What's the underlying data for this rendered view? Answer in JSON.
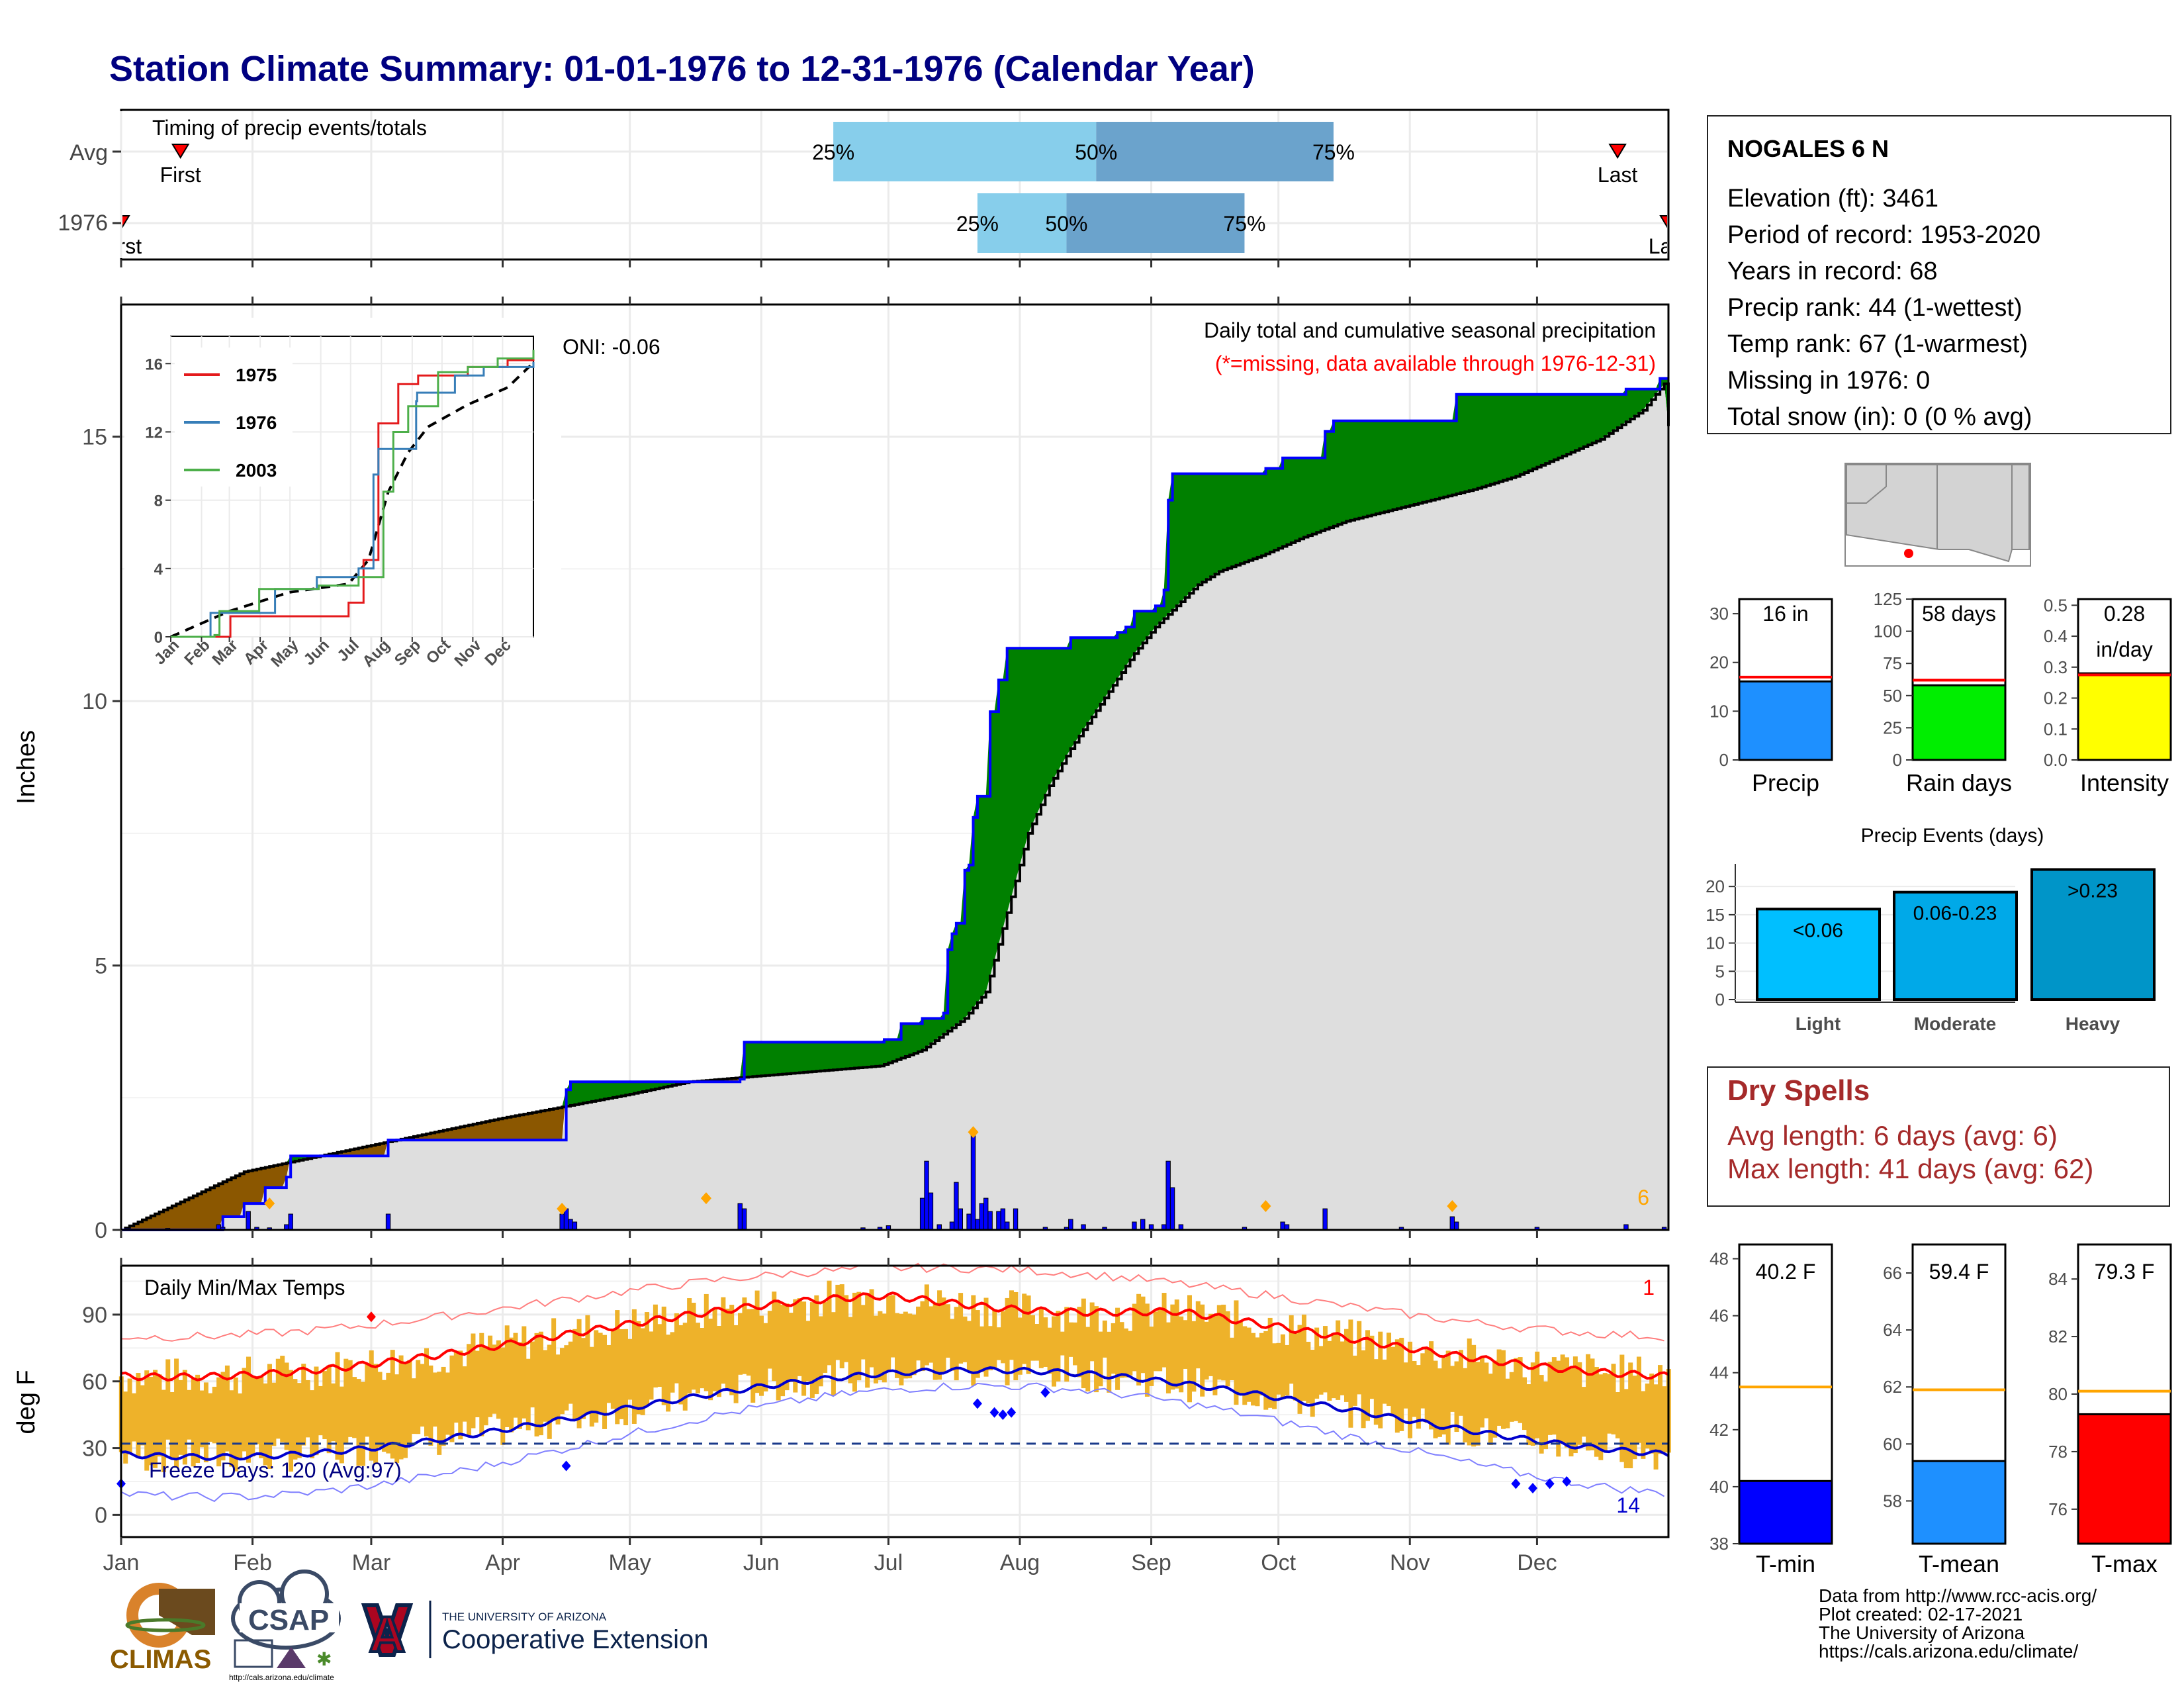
{
  "title": "Station Climate Summary: 01-01-1976 to 12-31-1976 (Calendar Year)",
  "colors": {
    "title": "#000080",
    "below_avg": "#8B5700",
    "above_avg": "#008000",
    "cumulative_fill": "#DEDEDE",
    "daily_bar": "#0000FF",
    "temp_bar": "#EEB22A",
    "t_max_line": "#FF0000",
    "t_min_line": "#0000CD",
    "precip_box": "#1E90FF",
    "rain_days_box": "#00EE00",
    "intensity_box": "#FFFF00",
    "event_light": "#00BFFF",
    "event_moderate": "#00A9E8",
    "event_heavy": "#0095C8",
    "dry_spell_text": "#A52A2A",
    "red_ref": "#FF0000",
    "orange_ref": "#FFA500"
  },
  "timing": {
    "title": "Timing of precip events/totals",
    "rows": [
      {
        "label": "Avg",
        "first_label": "First",
        "last_label": "Last",
        "first_day": 15,
        "q25_day": 169,
        "q50_day": 231,
        "q75_day": 287,
        "last_day": 354
      },
      {
        "label": "1976",
        "first_label": "First",
        "last_label": "Last",
        "first_day": 1,
        "q25_day": 203,
        "q50_day": 224,
        "q75_day": 266,
        "last_day": 366
      }
    ],
    "pct_labels": [
      "25%",
      "50%",
      "75%"
    ]
  },
  "precip_panel": {
    "ylabel": "Inches",
    "title_line1": "Daily total and cumulative seasonal precipitation",
    "title_line2": "(*=missing, data available through 1976-12-31)",
    "oni": "ONI: -0.06",
    "extreme_count": "6",
    "y_ticks": [
      "0",
      "5",
      "10",
      "15"
    ],
    "ylim": [
      0,
      17.5
    ],
    "cum_avg_pts": [
      [
        1,
        0
      ],
      [
        30,
        1.1
      ],
      [
        60,
        1.6
      ],
      [
        90,
        2.1
      ],
      [
        120,
        2.55
      ],
      [
        135,
        2.8
      ],
      [
        150,
        2.9
      ],
      [
        180,
        3.1
      ],
      [
        190,
        3.4
      ],
      [
        195,
        3.7
      ],
      [
        200,
        4.0
      ],
      [
        205,
        4.5
      ],
      [
        210,
        6.0
      ],
      [
        215,
        7.5
      ],
      [
        220,
        8.4
      ],
      [
        225,
        9.1
      ],
      [
        230,
        9.7
      ],
      [
        235,
        10.3
      ],
      [
        240,
        10.9
      ],
      [
        245,
        11.4
      ],
      [
        250,
        11.8
      ],
      [
        255,
        12.2
      ],
      [
        260,
        12.45
      ],
      [
        270,
        12.75
      ],
      [
        280,
        13.1
      ],
      [
        290,
        13.4
      ],
      [
        300,
        13.6
      ],
      [
        310,
        13.8
      ],
      [
        320,
        14.0
      ],
      [
        330,
        14.25
      ],
      [
        340,
        14.6
      ],
      [
        350,
        14.95
      ],
      [
        360,
        15.5
      ],
      [
        365,
        16.0
      ],
      [
        366,
        15.2
      ]
    ],
    "cum_1976_pts": [
      [
        1,
        0
      ],
      [
        24,
        0
      ],
      [
        25,
        0.25
      ],
      [
        30,
        0.5
      ],
      [
        35,
        0.8
      ],
      [
        40,
        1.0
      ],
      [
        41,
        1.4
      ],
      [
        63,
        1.4
      ],
      [
        64,
        1.7
      ],
      [
        105,
        1.7
      ],
      [
        106,
        2.65
      ],
      [
        107,
        2.8
      ],
      [
        147,
        2.85
      ],
      [
        148,
        3.55
      ],
      [
        177,
        3.55
      ],
      [
        181,
        3.6
      ],
      [
        185,
        3.9
      ],
      [
        190,
        4.0
      ],
      [
        195,
        4.1
      ],
      [
        196,
        5.3
      ],
      [
        197,
        5.6
      ],
      [
        198,
        5.8
      ],
      [
        200,
        6.8
      ],
      [
        201,
        6.9
      ],
      [
        202,
        7.8
      ],
      [
        203,
        8.2
      ],
      [
        206,
        9.8
      ],
      [
        208,
        10.4
      ],
      [
        210,
        11.0
      ],
      [
        224,
        11.0
      ],
      [
        225,
        11.2
      ],
      [
        235,
        11.2
      ],
      [
        236,
        11.3
      ],
      [
        238,
        11.4
      ],
      [
        240,
        11.7
      ],
      [
        245,
        11.8
      ],
      [
        247,
        12.1
      ],
      [
        248,
        13.8
      ],
      [
        249,
        14.3
      ],
      [
        270,
        14.3
      ],
      [
        271,
        14.4
      ],
      [
        275,
        14.6
      ],
      [
        285,
        15.1
      ],
      [
        287,
        15.3
      ],
      [
        315,
        15.3
      ],
      [
        316,
        15.8
      ],
      [
        355,
        15.8
      ],
      [
        356,
        15.9
      ],
      [
        363,
        15.9
      ],
      [
        364,
        16.1
      ],
      [
        366,
        16.1
      ]
    ],
    "daily_bars": [
      [
        12,
        0.03
      ],
      [
        24,
        0.1
      ],
      [
        25,
        0.05
      ],
      [
        31,
        0.35
      ],
      [
        33,
        0.05
      ],
      [
        36,
        0.04
      ],
      [
        40,
        0.1
      ],
      [
        41,
        0.3
      ],
      [
        64,
        0.3
      ],
      [
        105,
        0.3
      ],
      [
        106,
        0.4
      ],
      [
        107,
        0.2
      ],
      [
        108,
        0.15
      ],
      [
        147,
        0.5
      ],
      [
        148,
        0.4
      ],
      [
        176,
        0.04
      ],
      [
        180,
        0.05
      ],
      [
        182,
        0.08
      ],
      [
        190,
        0.6
      ],
      [
        191,
        1.3
      ],
      [
        192,
        0.7
      ],
      [
        194,
        0.1
      ],
      [
        197,
        0.15
      ],
      [
        198,
        0.9
      ],
      [
        199,
        0.4
      ],
      [
        201,
        0.3
      ],
      [
        202,
        1.9
      ],
      [
        203,
        0.2
      ],
      [
        204,
        0.5
      ],
      [
        205,
        0.6
      ],
      [
        206,
        0.35
      ],
      [
        208,
        0.35
      ],
      [
        209,
        0.4
      ],
      [
        210,
        0.15
      ],
      [
        212,
        0.4
      ],
      [
        219,
        0.05
      ],
      [
        224,
        0.05
      ],
      [
        225,
        0.2
      ],
      [
        228,
        0.1
      ],
      [
        233,
        0.05
      ],
      [
        240,
        0.15
      ],
      [
        242,
        0.2
      ],
      [
        244,
        0.1
      ],
      [
        247,
        0.1
      ],
      [
        248,
        1.3
      ],
      [
        249,
        0.8
      ],
      [
        251,
        0.1
      ],
      [
        266,
        0.05
      ],
      [
        275,
        0.15
      ],
      [
        276,
        0.1
      ],
      [
        285,
        0.4
      ],
      [
        303,
        0.05
      ],
      [
        315,
        0.25
      ],
      [
        316,
        0.15
      ],
      [
        335,
        0.05
      ],
      [
        356,
        0.1
      ],
      [
        365,
        0.05
      ]
    ],
    "extreme_markers": [
      [
        36,
        0.5
      ],
      [
        105,
        0.4
      ],
      [
        139,
        0.6
      ],
      [
        202,
        1.85
      ],
      [
        271,
        0.45
      ],
      [
        315,
        0.45
      ]
    ]
  },
  "inset": {
    "y_ticks": [
      "0",
      "4",
      "8",
      "12",
      "16"
    ],
    "x_ticks": [
      "Jan",
      "Feb",
      "Mar",
      "Apr",
      "May",
      "Jun",
      "Jul",
      "Aug",
      "Sep",
      "Oct",
      "Nov",
      "Dec"
    ],
    "legend": [
      {
        "name": "1975",
        "color": "#E41A1C"
      },
      {
        "name": "1976",
        "color": "#377EB8"
      },
      {
        "name": "2003",
        "color": "#4DAF4A"
      }
    ],
    "avg_pts": [
      [
        1,
        0
      ],
      [
        60,
        1.5
      ],
      [
        120,
        2.6
      ],
      [
        180,
        3.1
      ],
      [
        200,
        4.5
      ],
      [
        220,
        8.5
      ],
      [
        240,
        10.8
      ],
      [
        260,
        12.3
      ],
      [
        300,
        13.6
      ],
      [
        340,
        14.6
      ],
      [
        365,
        16.0
      ]
    ],
    "series": [
      {
        "name": "1975",
        "pts": [
          [
            1,
            0
          ],
          [
            60,
            0
          ],
          [
            61,
            1.2
          ],
          [
            150,
            1.2
          ],
          [
            180,
            2.0
          ],
          [
            195,
            4.5
          ],
          [
            210,
            12.5
          ],
          [
            230,
            14.8
          ],
          [
            250,
            15.3
          ],
          [
            300,
            15.8
          ],
          [
            340,
            16.2
          ],
          [
            366,
            16.7
          ]
        ]
      },
      {
        "name": "1976",
        "pts": [
          [
            1,
            0
          ],
          [
            25,
            0
          ],
          [
            41,
            1.4
          ],
          [
            106,
            2.8
          ],
          [
            148,
            3.5
          ],
          [
            190,
            4.0
          ],
          [
            205,
            9.5
          ],
          [
            210,
            11.0
          ],
          [
            248,
            13.8
          ],
          [
            249,
            14.3
          ],
          [
            287,
            15.3
          ],
          [
            316,
            15.8
          ],
          [
            366,
            16.1
          ]
        ]
      },
      {
        "name": "2003",
        "pts": [
          [
            1,
            0
          ],
          [
            45,
            0.1
          ],
          [
            50,
            1.5
          ],
          [
            90,
            2.8
          ],
          [
            150,
            3.0
          ],
          [
            190,
            3.5
          ],
          [
            215,
            8.5
          ],
          [
            225,
            12.0
          ],
          [
            240,
            13.5
          ],
          [
            270,
            15.5
          ],
          [
            300,
            15.8
          ],
          [
            330,
            16.3
          ],
          [
            366,
            16.8
          ]
        ]
      }
    ]
  },
  "temp_panel": {
    "ylabel": "deg F",
    "title": "Daily Min/Max Temps",
    "freeze": "Freeze Days: 120 (Avg:97)",
    "max_count": "1",
    "min_count": "14",
    "y_ticks": [
      "0",
      "30",
      "60",
      "90"
    ],
    "ylim": [
      -10,
      112
    ],
    "freeze_line": 32
  },
  "months": [
    "Jan",
    "Feb",
    "Mar",
    "Apr",
    "May",
    "Jun",
    "Jul",
    "Aug",
    "Sep",
    "Oct",
    "Nov",
    "Dec"
  ],
  "station": {
    "name": "NOGALES 6 N",
    "lines": [
      "Elevation (ft): 3461",
      "Period of record: 1953-2020",
      "Years in record: 68",
      "Precip rank: 44 (1-wettest)",
      "Temp rank: 67 (1-warmest)",
      "Missing in 1976: 0",
      "Total snow (in): 0 (0 % avg)"
    ]
  },
  "summary_boxes": [
    {
      "label": "Precip",
      "value_text": "16 in",
      "value": 16.1,
      "avg": 17.0,
      "ymax": 33,
      "ticks": [
        "0",
        "10",
        "20",
        "30"
      ],
      "tick_vals": [
        0,
        10,
        20,
        30
      ]
    },
    {
      "label": "Rain days",
      "value_text": "58 days",
      "value": 58,
      "avg": 62,
      "ymax": 125,
      "ticks": [
        "0",
        "25",
        "50",
        "75",
        "100",
        "125"
      ],
      "tick_vals": [
        0,
        25,
        50,
        75,
        100,
        125
      ]
    },
    {
      "label": "Intensity",
      "value_text": "0.28",
      "value_text2": "in/day",
      "value": 0.28,
      "avg": 0.275,
      "ymax": 0.52,
      "ticks": [
        "0.0",
        "0.1",
        "0.2",
        "0.3",
        "0.4",
        "0.5"
      ],
      "tick_vals": [
        0,
        0.1,
        0.2,
        0.3,
        0.4,
        0.5
      ]
    }
  ],
  "events": {
    "title": "Precip Events (days)",
    "ticks": [
      "0",
      "5",
      "10",
      "15",
      "20"
    ],
    "categories": [
      "Light",
      "Moderate",
      "Heavy"
    ],
    "labels": [
      "<0.06",
      "0.06-0.23",
      ">0.23"
    ],
    "values": [
      16,
      19,
      23
    ]
  },
  "dry_spells": {
    "title": "Dry Spells",
    "avg": "Avg length: 6 days (avg: 6)",
    "max": "Max length: 41 days (avg: 62)"
  },
  "temp_boxes": [
    {
      "label": "T-min",
      "value_text": "40.2 F",
      "value": 40.2,
      "avg": 43.5,
      "ymin": 38,
      "ymax": 48.5,
      "ticks": [
        "38",
        "40",
        "42",
        "44",
        "46",
        "48"
      ],
      "tick_vals": [
        38,
        40,
        42,
        44,
        46,
        48
      ]
    },
    {
      "label": "T-mean",
      "value_text": "59.4 F",
      "value": 59.4,
      "avg": 61.9,
      "ymin": 56.5,
      "ymax": 67,
      "ticks": [
        "58",
        "60",
        "62",
        "64",
        "66"
      ],
      "tick_vals": [
        58,
        60,
        62,
        64,
        66
      ]
    },
    {
      "label": "T-max",
      "value_text": "79.3 F",
      "value": 79.3,
      "avg": 80.1,
      "ymin": 74.8,
      "ymax": 85.2,
      "ticks": [
        "76",
        "78",
        "80",
        "82",
        "84"
      ],
      "tick_vals": [
        76,
        78,
        80,
        82,
        84
      ]
    }
  ],
  "logos": {
    "climas": "CLIMAS",
    "csap": "CSAP",
    "csap_url": "http://cals.arizona.edu/climate",
    "ua_small": "THE UNIVERSITY OF ARIZONA",
    "ua_big": "Cooperative Extension"
  },
  "credits": [
    "Data from http://www.rcc-acis.org/",
    "Plot created: 02-17-2021",
    "The University of Arizona",
    "https://cals.arizona.edu/climate/"
  ]
}
